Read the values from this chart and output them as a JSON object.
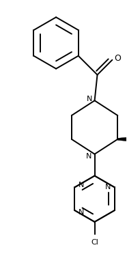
{
  "bg_color": "#ffffff",
  "line_color": "#000000",
  "lw": 1.4,
  "figsize": [
    1.86,
    3.72
  ],
  "dpi": 100,
  "xlim": [
    0,
    186
  ],
  "ylim": [
    0,
    372
  ]
}
